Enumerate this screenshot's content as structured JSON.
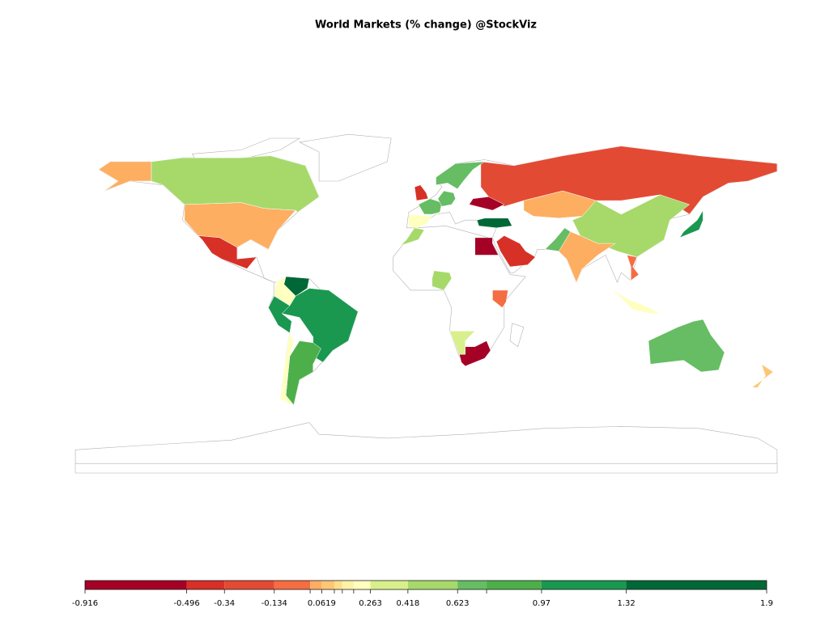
{
  "chart_data": {
    "type": "choropleth",
    "title": "World Markets (% change) @StockViz",
    "breaks": [
      -0.916,
      -0.496,
      -0.34,
      -0.134,
      0.014,
      0.0619,
      0.114,
      0.147,
      0.194,
      0.263,
      0.418,
      0.623,
      0.743,
      0.97,
      1.32,
      1.9
    ],
    "colors": [
      "#a50026",
      "#d73027",
      "#e34a33",
      "#f46d43",
      "#fdae61",
      "#fdc675",
      "#fee08b",
      "#fff2a8",
      "#ffffbf",
      "#d9ef8b",
      "#a6d96a",
      "#66bd63",
      "#4daf4a",
      "#1a9850",
      "#006837"
    ],
    "ticks": [
      -0.916,
      -0.496,
      -0.34,
      -0.134,
      0.0619,
      0.263,
      0.418,
      0.623,
      0.97,
      1.32,
      1.9
    ],
    "regions": [
      {
        "value": 0.03
      },
      {
        "value": 0.03
      },
      {
        "value": 0.5
      },
      {
        "value": -0.4
      },
      {
        "value": 1.6
      },
      {
        "value": 0.2
      },
      {
        "value": 1.2
      },
      {
        "value": 1.2
      },
      {
        "value": 0.8
      },
      {
        "value": 0.2
      },
      {
        "value": -0.2
      },
      {
        "value": 0.03
      },
      {
        "value": 0.5
      },
      {
        "value": 0.03
      },
      {
        "value": 0.65
      },
      {
        "value": 1.7
      },
      {
        "value": -0.7
      },
      {
        "value": -0.45
      },
      {
        "value": -0.8
      },
      {
        "value": 0.35
      },
      {
        "value": -0.1
      },
      {
        "value": 0.45
      },
      {
        "value": 0.45
      },
      {
        "value": 0.2
      },
      {
        "value": 0.7
      },
      {
        "value": 0.7
      },
      {
        "value": -0.45
      },
      {
        "value": 0.7
      },
      {
        "value": -0.5
      },
      {
        "value": 1.1
      },
      {
        "value": -0.1
      },
      {
        "value": 0.2
      },
      {
        "value": 0.65
      },
      {
        "value": 0.1
      }
    ]
  }
}
